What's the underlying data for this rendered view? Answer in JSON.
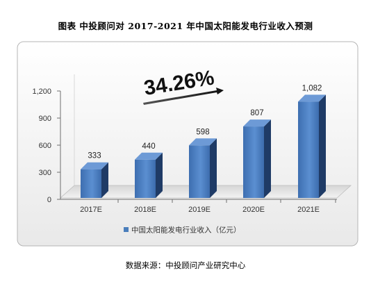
{
  "chart_data": {
    "type": "bar",
    "title": "图表    中投顾问对 2017-2021 年中国太阳能发电行业收入预测",
    "categories": [
      "2017E",
      "2018E",
      "2019E",
      "2020E",
      "2021E"
    ],
    "series": [
      {
        "name": "中国太阳能发电行业收入（亿元）",
        "values": [
          333,
          440,
          598,
          807,
          1082
        ]
      }
    ],
    "value_labels": [
      "333",
      "440",
      "598",
      "807",
      "1,082"
    ],
    "yticks": [
      "0",
      "300",
      "600",
      "900",
      "1,200"
    ],
    "ylim": [
      0,
      1200
    ],
    "annotation": "34.26%",
    "legend_position": "bottom",
    "grid": false,
    "bar_color": "#4a7ebb",
    "source": "数据来源：中投顾问产业研究中心"
  }
}
